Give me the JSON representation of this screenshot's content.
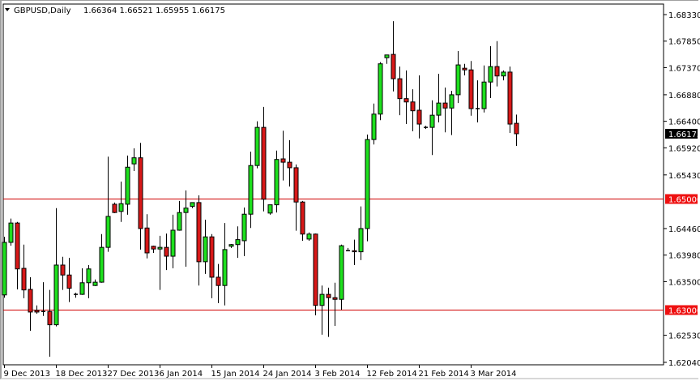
{
  "header": {
    "symbol": "GBPUSD,Daily",
    "ohlc": "1.66364 1.66521 1.65955 1.66175",
    "menu_icon": "triangle-down-icon"
  },
  "colors": {
    "bull": "#1ee01e",
    "bear": "#d81818",
    "outline": "#000000",
    "level_line": "#d00000",
    "current_price_bg": "#000000",
    "level_label_bg": "#ee1111"
  },
  "chart_data": {
    "type": "candlestick",
    "title": "GBPUSD,Daily",
    "ylim": [
      1.6204,
      1.6833
    ],
    "grid": false,
    "y_ticks": [
      "1.68330",
      "1.67850",
      "1.67370",
      "1.66880",
      "1.66400",
      "1.65920",
      "1.65430",
      "1.64460",
      "1.63980",
      "1.63500",
      "1.62530",
      "1.62040"
    ],
    "x_tick_labels": [
      {
        "index": 0,
        "label": "9 Dec 2013"
      },
      {
        "index": 8,
        "label": "18 Dec 2013"
      },
      {
        "index": 16,
        "label": "27 Dec 2013"
      },
      {
        "index": 24,
        "label": "6 Jan 2014"
      },
      {
        "index": 32,
        "label": "15 Jan 2014"
      },
      {
        "index": 40,
        "label": "24 Jan 2014"
      },
      {
        "index": 48,
        "label": "3 Feb 2014"
      },
      {
        "index": 56,
        "label": "12 Feb 2014"
      },
      {
        "index": 64,
        "label": "21 Feb 2014"
      },
      {
        "index": 72,
        "label": "3 Mar 2014"
      }
    ],
    "horizontal_levels": [
      {
        "value": 1.65,
        "label": "1.65000"
      },
      {
        "value": 1.63,
        "label": "1.63000"
      }
    ],
    "current_price": {
      "value": 1.66175,
      "label": "1.66175"
    },
    "ohlc_fields": [
      "open",
      "high",
      "low",
      "close"
    ],
    "candles": [
      [
        1.6326,
        1.6431,
        1.6321,
        1.6421
      ],
      [
        1.6421,
        1.6464,
        1.6415,
        1.6456
      ],
      [
        1.6456,
        1.6458,
        1.6336,
        1.6373
      ],
      [
        1.6374,
        1.6417,
        1.632,
        1.6335
      ],
      [
        1.6336,
        1.6358,
        1.6261,
        1.6295
      ],
      [
        1.6298,
        1.6307,
        1.6292,
        1.6295
      ],
      [
        1.6296,
        1.6349,
        1.6288,
        1.6296
      ],
      [
        1.6296,
        1.6335,
        1.6214,
        1.6272
      ],
      [
        1.6272,
        1.6483,
        1.6269,
        1.638
      ],
      [
        1.638,
        1.6395,
        1.6335,
        1.6362
      ],
      [
        1.6362,
        1.6393,
        1.6313,
        1.6338
      ],
      [
        1.6327,
        1.633,
        1.6321,
        1.6327
      ],
      [
        1.6327,
        1.6374,
        1.6326,
        1.6348
      ],
      [
        1.6348,
        1.638,
        1.632,
        1.6373
      ],
      [
        1.6343,
        1.6354,
        1.6342,
        1.6349
      ],
      [
        1.6349,
        1.6436,
        1.6348,
        1.6412
      ],
      [
        1.6412,
        1.6576,
        1.6404,
        1.6468
      ],
      [
        1.649,
        1.6493,
        1.6474,
        1.6475
      ],
      [
        1.6477,
        1.6531,
        1.6458,
        1.6491
      ],
      [
        1.649,
        1.6578,
        1.6471,
        1.6557
      ],
      [
        1.6563,
        1.6591,
        1.655,
        1.6574
      ],
      [
        1.6574,
        1.6601,
        1.6408,
        1.6446
      ],
      [
        1.6447,
        1.6472,
        1.6392,
        1.6402
      ],
      [
        1.6414,
        1.6415,
        1.6402,
        1.6409
      ],
      [
        1.6409,
        1.6433,
        1.6335,
        1.6412
      ],
      [
        1.6412,
        1.6437,
        1.6371,
        1.6396
      ],
      [
        1.6396,
        1.6471,
        1.6374,
        1.6443
      ],
      [
        1.6443,
        1.6496,
        1.6442,
        1.6475
      ],
      [
        1.6475,
        1.6515,
        1.6377,
        1.6483
      ],
      [
        1.6486,
        1.6493,
        1.6483,
        1.6493
      ],
      [
        1.6493,
        1.6506,
        1.6343,
        1.6386
      ],
      [
        1.6386,
        1.6462,
        1.6364,
        1.6431
      ],
      [
        1.6431,
        1.6436,
        1.632,
        1.6358
      ],
      [
        1.6358,
        1.6382,
        1.6311,
        1.6343
      ],
      [
        1.6343,
        1.6456,
        1.6307,
        1.6408
      ],
      [
        1.6414,
        1.6418,
        1.6411,
        1.6417
      ],
      [
        1.6417,
        1.645,
        1.6393,
        1.6426
      ],
      [
        1.6424,
        1.6484,
        1.6396,
        1.6472
      ],
      [
        1.6472,
        1.6585,
        1.6447,
        1.656
      ],
      [
        1.656,
        1.664,
        1.6555,
        1.6629
      ],
      [
        1.6629,
        1.6666,
        1.6477,
        1.6499
      ],
      [
        1.6474,
        1.6489,
        1.6471,
        1.6489
      ],
      [
        1.6489,
        1.6587,
        1.6475,
        1.6571
      ],
      [
        1.6572,
        1.6623,
        1.6533,
        1.6566
      ],
      [
        1.6566,
        1.6606,
        1.6522,
        1.6556
      ],
      [
        1.6556,
        1.6562,
        1.6442,
        1.6494
      ],
      [
        1.6494,
        1.6496,
        1.6424,
        1.6436
      ],
      [
        1.6427,
        1.6439,
        1.6424,
        1.6436
      ],
      [
        1.6436,
        1.6437,
        1.6289,
        1.6307
      ],
      [
        1.6307,
        1.6343,
        1.6254,
        1.6327
      ],
      [
        1.6327,
        1.6339,
        1.625,
        1.6321
      ],
      [
        1.6321,
        1.6348,
        1.627,
        1.6318
      ],
      [
        1.6318,
        1.6417,
        1.6299,
        1.6415
      ],
      [
        1.6406,
        1.6411,
        1.6405,
        1.6406
      ],
      [
        1.6406,
        1.6426,
        1.638,
        1.6404
      ],
      [
        1.6404,
        1.6486,
        1.6389,
        1.6446
      ],
      [
        1.6446,
        1.6616,
        1.6423,
        1.6607
      ],
      [
        1.6607,
        1.6672,
        1.6598,
        1.6653
      ],
      [
        1.6653,
        1.6747,
        1.6642,
        1.6744
      ],
      [
        1.6755,
        1.676,
        1.6744,
        1.676
      ],
      [
        1.6761,
        1.6821,
        1.6694,
        1.6717
      ],
      [
        1.6717,
        1.6739,
        1.6651,
        1.6681
      ],
      [
        1.6681,
        1.6732,
        1.6635,
        1.6675
      ],
      [
        1.6675,
        1.6698,
        1.6622,
        1.6659
      ],
      [
        1.666,
        1.6723,
        1.6609,
        1.6635
      ],
      [
        1.6629,
        1.6632,
        1.6626,
        1.6629
      ],
      [
        1.6629,
        1.6678,
        1.6579,
        1.6651
      ],
      [
        1.6651,
        1.6726,
        1.6638,
        1.6673
      ],
      [
        1.6673,
        1.6701,
        1.662,
        1.6664
      ],
      [
        1.6664,
        1.6695,
        1.6615,
        1.6688
      ],
      [
        1.6688,
        1.6767,
        1.6673,
        1.6742
      ],
      [
        1.6736,
        1.6744,
        1.6723,
        1.6733
      ],
      [
        1.6733,
        1.6749,
        1.665,
        1.6663
      ],
      [
        1.6663,
        1.6714,
        1.6638,
        1.6663
      ],
      [
        1.6663,
        1.6741,
        1.6656,
        1.6711
      ],
      [
        1.6711,
        1.6776,
        1.6682,
        1.6739
      ],
      [
        1.6739,
        1.6785,
        1.6703,
        1.6722
      ],
      [
        1.6722,
        1.6732,
        1.6714,
        1.6729
      ],
      [
        1.6729,
        1.6739,
        1.6619,
        1.6635
      ],
      [
        1.66364,
        1.66521,
        1.65955,
        1.66175
      ]
    ]
  }
}
